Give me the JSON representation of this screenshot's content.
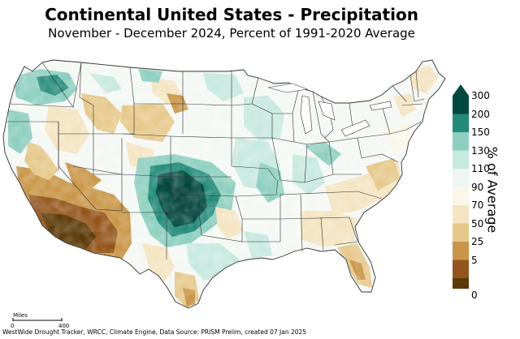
{
  "title": "Continental United States - Precipitation",
  "subtitle": "November - December 2024, Percent of 1991-2020 Average",
  "legend": {
    "axis_label": "% of Average",
    "bins": [
      {
        "label": "300",
        "color": "#01493f"
      },
      {
        "label": "200",
        "color": "#238b7a"
      },
      {
        "label": "150",
        "color": "#8dcfbf"
      },
      {
        "label": "130",
        "color": "#c7e9df"
      },
      {
        "label": "110",
        "color": "#eef6f3"
      },
      {
        "label": "90",
        "color": "#fbf6ea"
      },
      {
        "label": "70",
        "color": "#f4e4c1"
      },
      {
        "label": "50",
        "color": "#e6c88a"
      },
      {
        "label": "25",
        "color": "#c99648"
      },
      {
        "label": "5",
        "color": "#94551b"
      },
      {
        "label": "0",
        "color": "#5b3a07"
      }
    ]
  },
  "scale_bar": {
    "unit": "Miles",
    "start": "0",
    "end": "400"
  },
  "credit": "WestWide Drought Tracker, WRCC, Climate Engine, Data Source: PRISM Prelim, created 07 Jan 2025"
}
